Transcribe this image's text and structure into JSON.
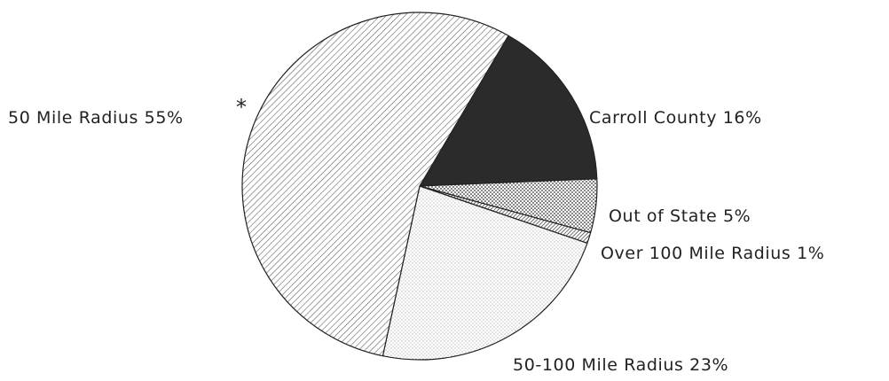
{
  "chart_data": {
    "type": "pie",
    "title": "",
    "slices": [
      {
        "label": "Carroll County 16%",
        "value": 16,
        "pattern": "solid-dark"
      },
      {
        "label": "Out of State 5%",
        "value": 5,
        "pattern": "dense-dots"
      },
      {
        "label": "Over 100 Mile Radius 1%",
        "value": 1,
        "pattern": "dense-diagonal"
      },
      {
        "label": "50-100 Mile Radius 23%",
        "value": 23,
        "pattern": "light-dots"
      },
      {
        "label": "50 Mile Radius 55%",
        "value": 55,
        "pattern": "diagonal-lines"
      }
    ],
    "start_angle_deg": -60,
    "direction": "clockwise",
    "annotation": "*",
    "annotation_slice": 4,
    "colors": {
      "slice_border": "#222222",
      "dark_fill": "#2b2b2b",
      "hatch": "#444444",
      "text": "#222222"
    }
  }
}
